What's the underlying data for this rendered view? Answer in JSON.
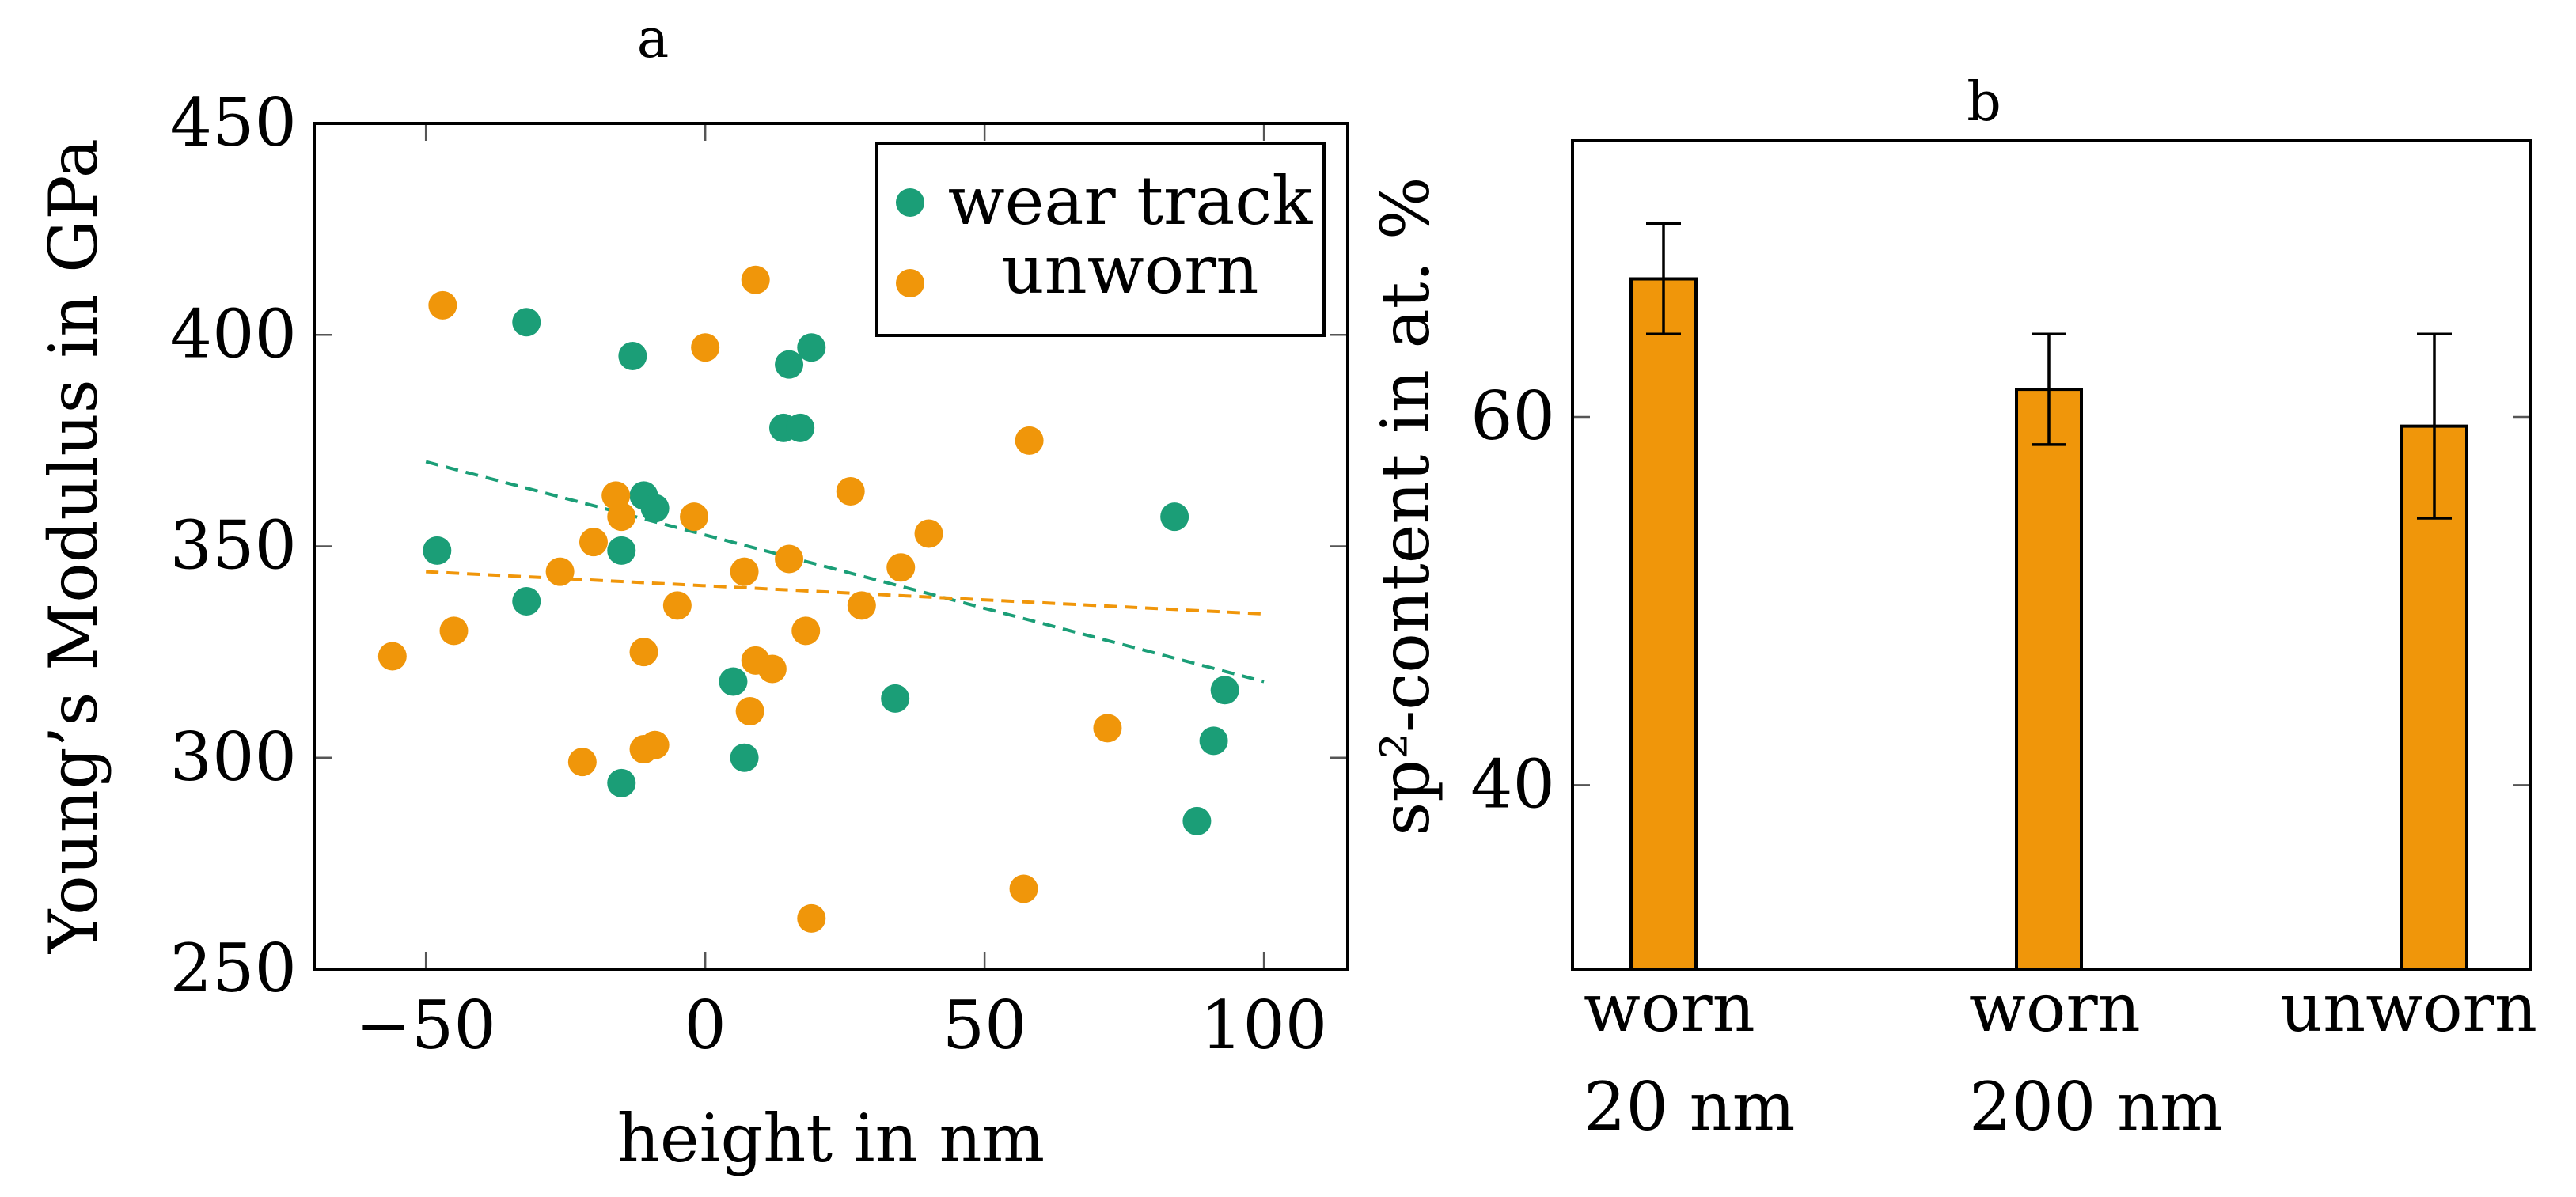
{
  "chart_data": [
    {
      "type": "scatter",
      "title": "a",
      "xlabel": "height in nm",
      "ylabel": "Young’s Modulus in GPa",
      "xlim": [
        -70,
        115
      ],
      "ylim": [
        250,
        450
      ],
      "xticks": [
        -50,
        0,
        50,
        100
      ],
      "xtick_labels": [
        "−50",
        "0",
        "50",
        "100"
      ],
      "yticks": [
        250,
        300,
        350,
        400,
        450
      ],
      "ytick_labels": [
        "250",
        "300",
        "350",
        "400",
        "450"
      ],
      "legend_position": "top-right",
      "series": [
        {
          "name": "wear track",
          "color": "#1b9e77",
          "points": [
            [
              -48,
              349
            ],
            [
              -32,
              403
            ],
            [
              -32,
              337
            ],
            [
              -15,
              349
            ],
            [
              -15,
              294
            ],
            [
              -13,
              395
            ],
            [
              -11,
              362
            ],
            [
              -9,
              359
            ],
            [
              5,
              318
            ],
            [
              7,
              300
            ],
            [
              14,
              378
            ],
            [
              15,
              393
            ],
            [
              17,
              378
            ],
            [
              19,
              397
            ],
            [
              34,
              314
            ],
            [
              84,
              357
            ],
            [
              88,
              285
            ],
            [
              91,
              304
            ],
            [
              93,
              316
            ]
          ],
          "trend": {
            "x": [
              -50,
              100
            ],
            "y": [
              370,
              318
            ]
          }
        },
        {
          "name": "unworn",
          "color": "#f0960a",
          "points": [
            [
              -56,
              324
            ],
            [
              -47,
              407
            ],
            [
              -45,
              330
            ],
            [
              -26,
              344
            ],
            [
              -22,
              299
            ],
            [
              -20,
              351
            ],
            [
              -16,
              362
            ],
            [
              -15,
              357
            ],
            [
              -11,
              325
            ],
            [
              -11,
              302
            ],
            [
              -9,
              303
            ],
            [
              -5,
              336
            ],
            [
              -2,
              357
            ],
            [
              0,
              397
            ],
            [
              7,
              344
            ],
            [
              8,
              311
            ],
            [
              9,
              323
            ],
            [
              9,
              413
            ],
            [
              12,
              321
            ],
            [
              15,
              347
            ],
            [
              18,
              330
            ],
            [
              19,
              262
            ],
            [
              26,
              363
            ],
            [
              28,
              336
            ],
            [
              35,
              345
            ],
            [
              40,
              353
            ],
            [
              57,
              269
            ],
            [
              58,
              375
            ],
            [
              72,
              307
            ]
          ],
          "trend": {
            "x": [
              -50,
              100
            ],
            "y": [
              344,
              334
            ]
          }
        }
      ]
    },
    {
      "type": "bar",
      "title": "b",
      "ylabel": "sp²-content in at. %",
      "categories": [
        "worn 20 nm",
        "worn 200 nm",
        "unworn"
      ],
      "category_lines": [
        [
          "worn",
          "20 nm"
        ],
        [
          "worn",
          "200 nm"
        ],
        [
          "unworn"
        ]
      ],
      "values": [
        67.5,
        61.5,
        59.5
      ],
      "errors": [
        3,
        3,
        5
      ],
      "bar_color": "#f0960a",
      "ylim": [
        30,
        75
      ],
      "yticks": [
        40,
        60
      ],
      "ytick_labels": [
        "40",
        "60"
      ]
    }
  ]
}
